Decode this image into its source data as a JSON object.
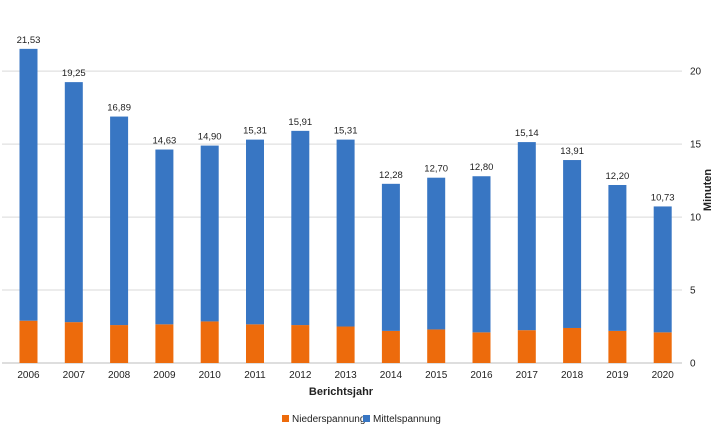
{
  "chart_data": {
    "type": "bar",
    "stacked": true,
    "categories": [
      "2006",
      "2007",
      "2008",
      "2009",
      "2010",
      "2011",
      "2012",
      "2013",
      "2014",
      "2015",
      "2016",
      "2017",
      "2018",
      "2019",
      "2020"
    ],
    "series": [
      {
        "name": "Niederspannung",
        "color": "#ED6B0C",
        "values": [
          2.9,
          2.8,
          2.6,
          2.65,
          2.85,
          2.65,
          2.6,
          2.5,
          2.2,
          2.3,
          2.1,
          2.25,
          2.4,
          2.2,
          2.1
        ]
      },
      {
        "name": "Mittelspannung",
        "color": "#3876C3",
        "values": [
          18.63,
          16.45,
          14.29,
          11.98,
          12.05,
          12.66,
          13.31,
          12.81,
          10.08,
          10.4,
          10.7,
          12.89,
          11.51,
          10.0,
          8.63
        ]
      }
    ],
    "totals_labels": [
      "21,53",
      "19,25",
      "16,89",
      "14,63",
      "14,90",
      "15,31",
      "15,91",
      "15,31",
      "12,28",
      "12,70",
      "12,80",
      "15,14",
      "13,91",
      "12,20",
      "10,73"
    ],
    "totals": [
      21.53,
      19.25,
      16.89,
      14.63,
      14.9,
      15.31,
      15.91,
      15.31,
      12.28,
      12.7,
      12.8,
      15.14,
      13.91,
      12.2,
      10.73
    ],
    "xlabel": "Berichtsjahr",
    "ylabel": "Minuten",
    "ylim": [
      0,
      22
    ],
    "yticks": [
      0,
      5,
      10,
      15,
      20
    ],
    "y_axis_side": "right",
    "grid": true,
    "legend": "bottom-center"
  }
}
